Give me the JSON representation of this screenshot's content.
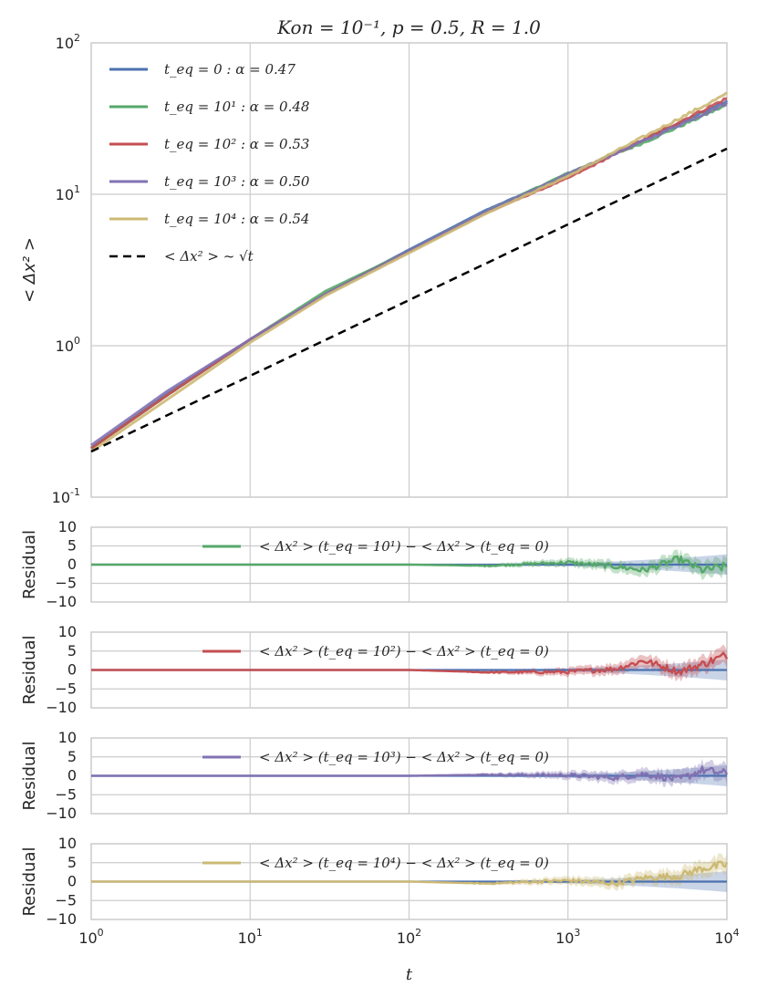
{
  "chart_data": [
    {
      "type": "line",
      "title": "K_on = 10^{-1}, p = 0.5, R = 1.0",
      "title_display": "Kon = 10⁻¹, p = 0.5, R = 1.0",
      "xlabel": "",
      "ylabel": "< Δx² >",
      "xscale": "log",
      "yscale": "log",
      "xlim": [
        1,
        10000
      ],
      "ylim": [
        0.1,
        100
      ],
      "grid": true,
      "legend_position": "top-left",
      "x_ticks": [
        "10^0",
        "10^1",
        "10^2",
        "10^3",
        "10^4"
      ],
      "y_ticks": [
        {
          "base": "10",
          "exp": "-1",
          "value": 0.1
        },
        {
          "base": "10",
          "exp": "0",
          "value": 1
        },
        {
          "base": "10",
          "exp": "1",
          "value": 10
        },
        {
          "base": "10",
          "exp": "2",
          "value": 100
        }
      ],
      "x": [
        1,
        3,
        10,
        30,
        100,
        300,
        1000,
        3000,
        10000
      ],
      "series": [
        {
          "name": "t_eq = 0 : α = 0.47",
          "color": "#4c72b0",
          "values": [
            0.21,
            0.48,
            1.1,
            2.2,
            4.3,
            7.8,
            13.5,
            23,
            41
          ]
        },
        {
          "name": "t_eq = 10^1 : α = 0.48",
          "color": "#55a868",
          "values": [
            0.21,
            0.47,
            1.1,
            2.3,
            4.2,
            7.6,
            13.8,
            22,
            39
          ]
        },
        {
          "name": "t_eq = 10^2 : α = 0.53",
          "color": "#c44e52",
          "values": [
            0.21,
            0.47,
            1.1,
            2.2,
            4.2,
            7.5,
            12.8,
            23,
            43
          ]
        },
        {
          "name": "t_eq = 10^3 : α = 0.50",
          "color": "#8172b2",
          "values": [
            0.22,
            0.5,
            1.1,
            2.2,
            4.2,
            7.6,
            13.6,
            22.5,
            40
          ]
        },
        {
          "name": "t_eq = 10^4 : α = 0.54",
          "color": "#ccb974",
          "values": [
            0.2,
            0.44,
            1.05,
            2.15,
            4.1,
            7.4,
            13.2,
            24,
            46
          ]
        },
        {
          "name": "< Δx² > ~ √t",
          "color": "#000000",
          "dashed": true,
          "values": [
            0.2,
            0.346,
            0.632,
            1.095,
            2.0,
            3.46,
            6.32,
            10.95,
            20.0
          ]
        }
      ],
      "legend": [
        {
          "text": "t_eq = 0 : α = 0.47",
          "color": "#4c72b0"
        },
        {
          "text": "t_eq = 10¹ : α = 0.48",
          "color": "#55a868"
        },
        {
          "text": "t_eq = 10² : α = 0.53",
          "color": "#c44e52"
        },
        {
          "text": "t_eq = 10³ : α = 0.50",
          "color": "#8172b2"
        },
        {
          "text": "t_eq = 10⁴ : α = 0.54",
          "color": "#ccb974"
        },
        {
          "text": "< Δx² > ~ √t",
          "color": "#000000",
          "dashed": true
        }
      ]
    },
    {
      "type": "line",
      "ylabel": "Residual",
      "xscale": "log",
      "xlim": [
        1,
        10000
      ],
      "ylim": [
        -10,
        10
      ],
      "y_ticks": [
        "10",
        "5",
        "0",
        "−5",
        "−10"
      ],
      "legend": "< Δx² > (t_eq = 10¹) − < Δx² > (t_eq = 0)",
      "color": "#55a868",
      "x": [
        1,
        10,
        100,
        300,
        1000,
        2000,
        3000,
        5000,
        7000,
        10000
      ],
      "values": [
        0,
        0,
        0,
        -0.3,
        0.6,
        -0.5,
        -1.5,
        1.5,
        -1.5,
        -0.5
      ]
    },
    {
      "type": "line",
      "ylabel": "Residual",
      "xscale": "log",
      "xlim": [
        1,
        10000
      ],
      "ylim": [
        -10,
        10
      ],
      "y_ticks": [
        "10",
        "5",
        "0",
        "−5",
        "−10"
      ],
      "legend": "< Δx² > (t_eq = 10²) − < Δx² > (t_eq = 0)",
      "color": "#c44e52",
      "x": [
        1,
        10,
        100,
        300,
        1000,
        2000,
        3000,
        5000,
        7000,
        10000
      ],
      "values": [
        0,
        0,
        0,
        -0.6,
        -0.5,
        0.3,
        2.5,
        -0.5,
        1.5,
        4.0
      ]
    },
    {
      "type": "line",
      "ylabel": "Residual",
      "xscale": "log",
      "xlim": [
        1,
        10000
      ],
      "ylim": [
        -10,
        10
      ],
      "y_ticks": [
        "10",
        "5",
        "0",
        "−5",
        "−10"
      ],
      "legend": "< Δx² > (t_eq = 10³) − < Δx² > (t_eq = 0)",
      "color": "#8172b2",
      "x": [
        1,
        10,
        100,
        300,
        1000,
        2000,
        3000,
        5000,
        7000,
        10000
      ],
      "values": [
        0,
        0,
        0,
        0.3,
        0.2,
        -0.5,
        0.5,
        -1.0,
        1.5,
        0.5
      ]
    },
    {
      "type": "line",
      "ylabel": "Residual",
      "xlabel": "t",
      "xscale": "log",
      "xlim": [
        1,
        10000
      ],
      "ylim": [
        -10,
        10
      ],
      "y_ticks": [
        "10",
        "5",
        "0",
        "−5",
        "−10"
      ],
      "x_ticks": [
        "10^0",
        "10^1",
        "10^2",
        "10^3",
        "10^4"
      ],
      "legend": "< Δx² > (t_eq = 10⁴) − < Δx² > (t_eq = 0)",
      "color": "#ccb974",
      "x": [
        1,
        10,
        100,
        300,
        1000,
        2000,
        3000,
        5000,
        7000,
        10000
      ],
      "values": [
        0,
        0,
        0,
        -0.5,
        0.3,
        -0.5,
        1.0,
        1.5,
        3.5,
        4.5
      ]
    }
  ]
}
